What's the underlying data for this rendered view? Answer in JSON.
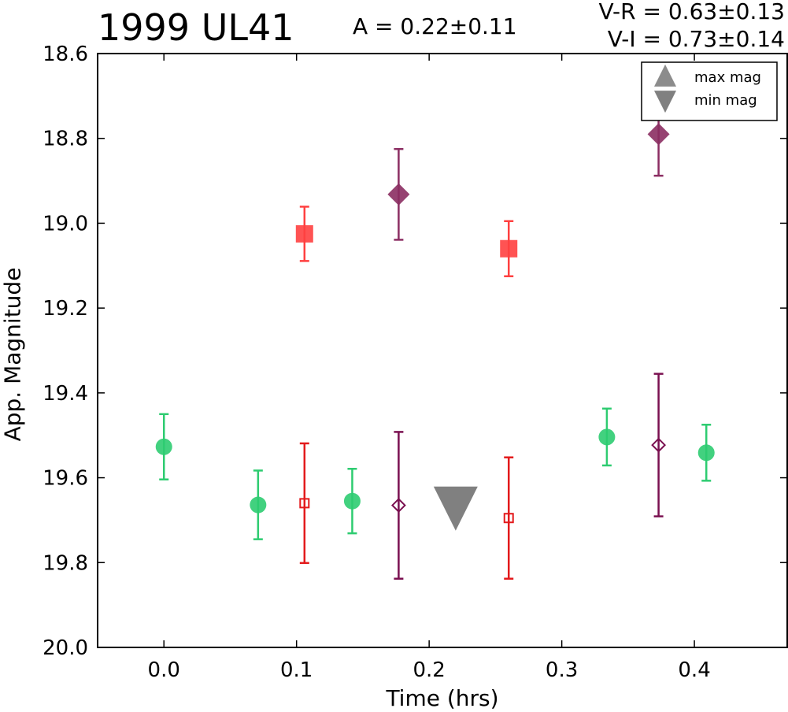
{
  "header": {
    "object_name": "1999 UL41",
    "amplitude": "A  = 0.22±0.11",
    "v_minus_r": "V-R = 0.63±0.13",
    "v_minus_i": "V-I  = 0.73±0.14"
  },
  "chart_data": {
    "type": "scatter",
    "title": "1999 UL41",
    "xlabel": "Time (hrs)",
    "ylabel": "App. Magnitude",
    "xlim": [
      -0.05,
      0.47
    ],
    "ylim": [
      20.0,
      18.6
    ],
    "y_inverted": true,
    "grid": false,
    "legend_position": "top-right",
    "x_ticks": [
      "0.0",
      "0.1",
      "0.2",
      "0.3",
      "0.4"
    ],
    "y_ticks": [
      "18.6",
      "18.8",
      "19.0",
      "19.2",
      "19.4",
      "19.6",
      "19.8",
      "20.0"
    ],
    "legend": [
      {
        "label": "max mag",
        "marker": "triangle-up",
        "color": "#808080"
      },
      {
        "label": "min mag",
        "marker": "triangle-down",
        "color": "#808080"
      }
    ],
    "series": [
      {
        "marker": "circle",
        "filled": true,
        "color": "#2ecc71",
        "points": [
          {
            "x": 0.0,
            "y": 19.527,
            "err": 0.077
          },
          {
            "x": 0.071,
            "y": 19.664,
            "err": 0.081
          },
          {
            "x": 0.142,
            "y": 19.655,
            "err": 0.076
          },
          {
            "x": 0.334,
            "y": 19.504,
            "err": 0.067
          },
          {
            "x": 0.409,
            "y": 19.541,
            "err": 0.066
          }
        ]
      },
      {
        "marker": "square",
        "filled": true,
        "color": "#ff4040",
        "points": [
          {
            "x": 0.106,
            "y": 19.025,
            "err": 0.064
          },
          {
            "x": 0.26,
            "y": 19.06,
            "err": 0.065
          }
        ]
      },
      {
        "marker": "square",
        "filled": false,
        "color": "#e31a1c",
        "points": [
          {
            "x": 0.106,
            "y": 19.66,
            "err": 0.141
          },
          {
            "x": 0.26,
            "y": 19.695,
            "err": 0.143
          }
        ]
      },
      {
        "marker": "diamond",
        "filled": true,
        "color": "#8b2d62",
        "points": [
          {
            "x": 0.177,
            "y": 18.932,
            "err": 0.107
          },
          {
            "x": 0.373,
            "y": 18.79,
            "err": 0.098
          }
        ]
      },
      {
        "marker": "diamond",
        "filled": false,
        "color": "#7a1050",
        "points": [
          {
            "x": 0.177,
            "y": 19.665,
            "err": 0.173
          },
          {
            "x": 0.373,
            "y": 19.523,
            "err": 0.168
          }
        ]
      },
      {
        "marker": "triangle-down",
        "filled": true,
        "color": "#808080",
        "points": [
          {
            "x": 0.22,
            "y": 19.665
          }
        ]
      }
    ]
  }
}
